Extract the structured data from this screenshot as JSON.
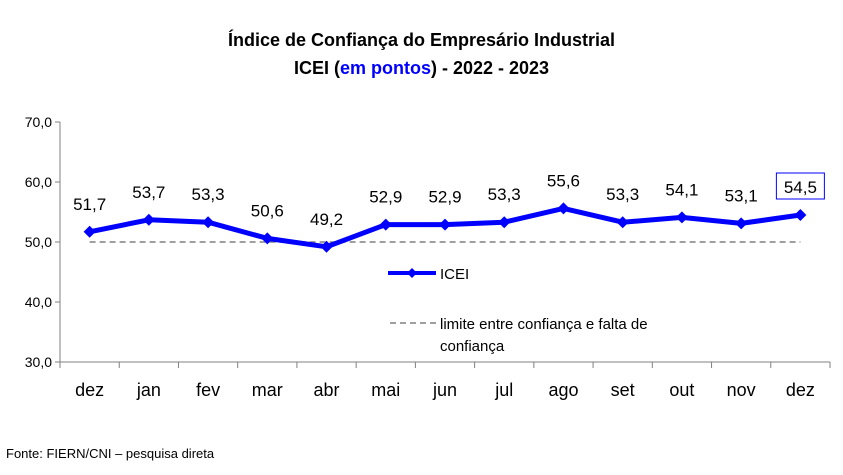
{
  "title_line1": "Índice de Confiança do Empresário Industrial",
  "title_line2_pre": "ICEI (",
  "title_line2_blue": "em pontos",
  "title_line2_post": ") - 2022 - 2023",
  "source": "Fonte: FIERN/CNI – pesquisa direta",
  "colors": {
    "series": "#0000ff",
    "threshold": "#808080",
    "highlight_box": "#0000ff"
  },
  "chart_data": {
    "type": "line",
    "categories": [
      "dez",
      "jan",
      "fev",
      "mar",
      "abr",
      "mai",
      "jun",
      "jul",
      "ago",
      "set",
      "out",
      "nov",
      "dez"
    ],
    "series": [
      {
        "name": "ICEI",
        "values": [
          51.7,
          53.7,
          53.3,
          50.6,
          49.2,
          52.9,
          52.9,
          53.3,
          55.6,
          53.3,
          54.1,
          53.1,
          54.5
        ],
        "labels": [
          "51,7",
          "53,7",
          "53,3",
          "50,6",
          "49,2",
          "52,9",
          "52,9",
          "53,3",
          "55,6",
          "53,3",
          "54,1",
          "53,1",
          "54,5"
        ]
      },
      {
        "name": "limite entre confiança e falta de confiança",
        "values": [
          50,
          50,
          50,
          50,
          50,
          50,
          50,
          50,
          50,
          50,
          50,
          50,
          50
        ],
        "style": "dashed"
      }
    ],
    "ylim": [
      30,
      70
    ],
    "yticks": [
      "30,0",
      "40,0",
      "50,0",
      "60,0",
      "70,0"
    ],
    "ytick_values": [
      30,
      40,
      50,
      60,
      70
    ],
    "grid": false,
    "legend_placement": "center",
    "highlighted_point": "last"
  }
}
